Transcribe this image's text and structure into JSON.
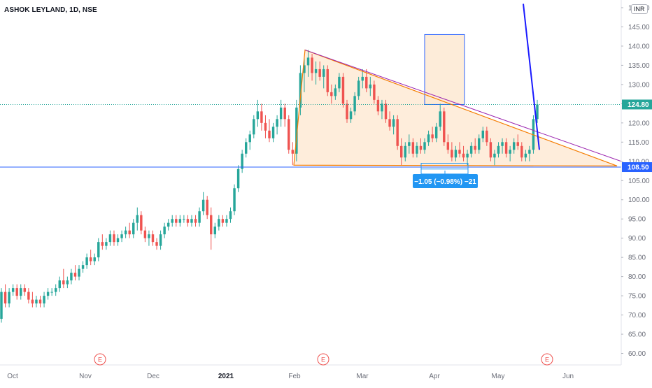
{
  "header": {
    "title": "ASHOK LEYLAND, 1D, NSE",
    "currency": "INR"
  },
  "colors": {
    "up": "#26a69a",
    "down": "#ef5350",
    "price_line": "#26a69a",
    "support_line": "#2962ff",
    "triangle_stroke": "#f57c00",
    "triangle_fill": "#fde7cf",
    "trendline_purple": "#9c27b0",
    "blue_line": "#1a1aff",
    "measure": "#2196f3"
  },
  "chart_data": {
    "type": "candlestick",
    "ylim": [
      57,
      152
    ],
    "y_ticks": [
      "60.00",
      "65.00",
      "70.00",
      "75.00",
      "80.00",
      "85.00",
      "90.00",
      "95.00",
      "100.00",
      "105.00",
      "110.00",
      "115.00",
      "120.00",
      "125.00",
      "130.00",
      "135.00",
      "140.00",
      "145.00",
      "150.00"
    ],
    "x_labels": [
      "Oct",
      "Nov",
      "Dec",
      "2021",
      "Feb",
      "Mar",
      "Apr",
      "May",
      "Jun"
    ],
    "price_labels": [
      {
        "text": "124.80",
        "value": 124.8,
        "kind": "last"
      },
      {
        "text": "108.50",
        "value": 108.5,
        "kind": "support"
      }
    ],
    "earnings_markers": [
      "E",
      "E",
      "E"
    ],
    "annotations": {
      "measure_label": "−1.05 (−0.98%) −21"
    },
    "key_levels": {
      "support": 108.5,
      "last_close": 124.8,
      "triangle_top": 139,
      "triangle_base": 109
    },
    "candles": [
      [
        69,
        77,
        68,
        76
      ],
      [
        76,
        78,
        72,
        73
      ],
      [
        73,
        77,
        72,
        76
      ],
      [
        76,
        78,
        75,
        77
      ],
      [
        77,
        78,
        74,
        75
      ],
      [
        75,
        78,
        74,
        77
      ],
      [
        77,
        78,
        75,
        76
      ],
      [
        76,
        77,
        73,
        74
      ],
      [
        74,
        76,
        72,
        73
      ],
      [
        73,
        75,
        72,
        74
      ],
      [
        74,
        75,
        72,
        73
      ],
      [
        73,
        76,
        72,
        75
      ],
      [
        75,
        77,
        74,
        76
      ],
      [
        76,
        77,
        75,
        76
      ],
      [
        76,
        78,
        75,
        77
      ],
      [
        77,
        80,
        76,
        79
      ],
      [
        79,
        82,
        77,
        78
      ],
      [
        78,
        80,
        77,
        79
      ],
      [
        79,
        82,
        78,
        81
      ],
      [
        81,
        83,
        79,
        80
      ],
      [
        80,
        83,
        79,
        82
      ],
      [
        82,
        84,
        81,
        83
      ],
      [
        83,
        86,
        82,
        85
      ],
      [
        85,
        87,
        83,
        84
      ],
      [
        84,
        86,
        83,
        85
      ],
      [
        85,
        90,
        84,
        89
      ],
      [
        89,
        91,
        87,
        88
      ],
      [
        88,
        90,
        87,
        89
      ],
      [
        89,
        92,
        88,
        91
      ],
      [
        91,
        92,
        88,
        89
      ],
      [
        89,
        91,
        88,
        90
      ],
      [
        90,
        92,
        89,
        91
      ],
      [
        91,
        93,
        90,
        92
      ],
      [
        92,
        94,
        90,
        91
      ],
      [
        91,
        95,
        90,
        94
      ],
      [
        94,
        98,
        92,
        96
      ],
      [
        96,
        97,
        91,
        92
      ],
      [
        92,
        93,
        89,
        90
      ],
      [
        90,
        92,
        88,
        91
      ],
      [
        91,
        92,
        88,
        89
      ],
      [
        89,
        90,
        87,
        88
      ],
      [
        88,
        92,
        87,
        91
      ],
      [
        91,
        94,
        90,
        93
      ],
      [
        93,
        95,
        92,
        94
      ],
      [
        94,
        96,
        93,
        95
      ],
      [
        95,
        96,
        93,
        94
      ],
      [
        94,
        96,
        93,
        95
      ],
      [
        95,
        96,
        94,
        95
      ],
      [
        95,
        96,
        93,
        94
      ],
      [
        94,
        96,
        93,
        95
      ],
      [
        95,
        96,
        93,
        94
      ],
      [
        94,
        98,
        93,
        97
      ],
      [
        97,
        102,
        96,
        100
      ],
      [
        100,
        101,
        95,
        96
      ],
      [
        96,
        98,
        87,
        91
      ],
      [
        91,
        94,
        90,
        93
      ],
      [
        93,
        96,
        92,
        95
      ],
      [
        95,
        96,
        93,
        94
      ],
      [
        94,
        96,
        93,
        95
      ],
      [
        95,
        98,
        94,
        97
      ],
      [
        97,
        104,
        96,
        103
      ],
      [
        103,
        109,
        102,
        108
      ],
      [
        108,
        113,
        107,
        112
      ],
      [
        112,
        116,
        111,
        115
      ],
      [
        115,
        118,
        113,
        117
      ],
      [
        117,
        122,
        116,
        121
      ],
      [
        121,
        126,
        119,
        123
      ],
      [
        123,
        125,
        118,
        120
      ],
      [
        120,
        122,
        116,
        118
      ],
      [
        118,
        121,
        115,
        116
      ],
      [
        116,
        120,
        115,
        119
      ],
      [
        119,
        122,
        117,
        121
      ],
      [
        121,
        126,
        119,
        124
      ],
      [
        124,
        125,
        119,
        121
      ],
      [
        121,
        122,
        112,
        113
      ],
      [
        113,
        115,
        109,
        112
      ],
      [
        112,
        126,
        110,
        124
      ],
      [
        124,
        135,
        122,
        133
      ],
      [
        133,
        137,
        128,
        135
      ],
      [
        135,
        139,
        132,
        137
      ],
      [
        137,
        138,
        131,
        133
      ],
      [
        133,
        136,
        130,
        134
      ],
      [
        134,
        136,
        131,
        132
      ],
      [
        132,
        135,
        129,
        134
      ],
      [
        134,
        135,
        127,
        128
      ],
      [
        128,
        130,
        125,
        127
      ],
      [
        127,
        130,
        126,
        129
      ],
      [
        129,
        133,
        128,
        132
      ],
      [
        132,
        133,
        124,
        125
      ],
      [
        125,
        126,
        120,
        121
      ],
      [
        121,
        124,
        120,
        123
      ],
      [
        123,
        128,
        122,
        127
      ],
      [
        127,
        132,
        126,
        131
      ],
      [
        131,
        134,
        129,
        132
      ],
      [
        132,
        134,
        128,
        129
      ],
      [
        129,
        132,
        127,
        130
      ],
      [
        130,
        131,
        125,
        126
      ],
      [
        126,
        127,
        122,
        123
      ],
      [
        123,
        126,
        121,
        125
      ],
      [
        125,
        126,
        120,
        121
      ],
      [
        121,
        123,
        118,
        119
      ],
      [
        119,
        122,
        117,
        121
      ],
      [
        121,
        122,
        113,
        114
      ],
      [
        114,
        116,
        109,
        111
      ],
      [
        111,
        115,
        110,
        114
      ],
      [
        114,
        117,
        112,
        115
      ],
      [
        115,
        116,
        111,
        112
      ],
      [
        112,
        115,
        111,
        114
      ],
      [
        114,
        116,
        112,
        113
      ],
      [
        113,
        116,
        112,
        115
      ],
      [
        115,
        118,
        114,
        117
      ],
      [
        117,
        119,
        115,
        116
      ],
      [
        116,
        120,
        115,
        119
      ],
      [
        119,
        125,
        118,
        123
      ],
      [
        123,
        124,
        114,
        115
      ],
      [
        115,
        117,
        112,
        113
      ],
      [
        113,
        115,
        110,
        111
      ],
      [
        111,
        114,
        110,
        113
      ],
      [
        113,
        115,
        111,
        112
      ],
      [
        112,
        114,
        110,
        111
      ],
      [
        111,
        113,
        109,
        112
      ],
      [
        112,
        115,
        111,
        114
      ],
      [
        114,
        116,
        112,
        113
      ],
      [
        113,
        117,
        112,
        116
      ],
      [
        116,
        119,
        115,
        118
      ],
      [
        118,
        119,
        114,
        115
      ],
      [
        115,
        116,
        110,
        111
      ],
      [
        111,
        113,
        109,
        112
      ],
      [
        112,
        115,
        111,
        114
      ],
      [
        114,
        116,
        112,
        115
      ],
      [
        115,
        116,
        111,
        112
      ],
      [
        112,
        114,
        110,
        113
      ],
      [
        113,
        116,
        112,
        115
      ],
      [
        115,
        117,
        113,
        114
      ],
      [
        114,
        115,
        110,
        111
      ],
      [
        111,
        113,
        110,
        112
      ],
      [
        112,
        114,
        110,
        113
      ],
      [
        113,
        122,
        112,
        121
      ],
      [
        121,
        126,
        120,
        124.8
      ]
    ]
  }
}
